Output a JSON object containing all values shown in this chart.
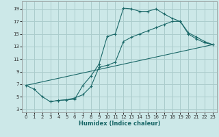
{
  "background_color": "#cce8e8",
  "grid_color": "#aacccc",
  "line_color": "#1a6868",
  "xlabel": "Humidex (Indice chaleur)",
  "xlim": [
    -0.5,
    23.5
  ],
  "ylim": [
    2.5,
    20.2
  ],
  "xticks": [
    0,
    1,
    2,
    3,
    4,
    5,
    6,
    7,
    8,
    9,
    10,
    11,
    12,
    13,
    14,
    15,
    16,
    17,
    18,
    19,
    20,
    21,
    22,
    23
  ],
  "yticks": [
    3,
    5,
    7,
    9,
    11,
    13,
    15,
    17,
    19
  ],
  "line1_x": [
    0,
    1,
    2,
    3,
    4,
    5,
    6,
    7,
    8,
    9,
    10,
    11,
    12,
    13,
    14,
    15,
    16,
    17,
    18,
    19,
    20,
    21,
    22,
    23
  ],
  "line1_y": [
    6.8,
    6.2,
    5.0,
    4.2,
    4.4,
    4.5,
    4.6,
    6.8,
    8.3,
    10.2,
    14.6,
    15.0,
    19.1,
    19.0,
    18.6,
    18.6,
    19.0,
    18.2,
    17.5,
    17.0,
    15.0,
    14.2,
    13.6,
    13.3
  ],
  "line2_x": [
    3,
    4,
    5,
    6,
    7,
    8,
    9,
    10,
    11,
    12,
    13,
    14,
    15,
    16,
    17,
    18,
    19,
    20,
    21,
    22,
    23
  ],
  "line2_y": [
    4.2,
    4.4,
    4.5,
    4.8,
    5.3,
    6.6,
    9.7,
    10.0,
    10.5,
    13.8,
    14.5,
    15.0,
    15.5,
    16.0,
    16.5,
    17.0,
    17.0,
    15.2,
    14.5,
    13.8,
    13.3
  ],
  "line3_x": [
    0,
    23
  ],
  "line3_y": [
    6.8,
    13.3
  ]
}
